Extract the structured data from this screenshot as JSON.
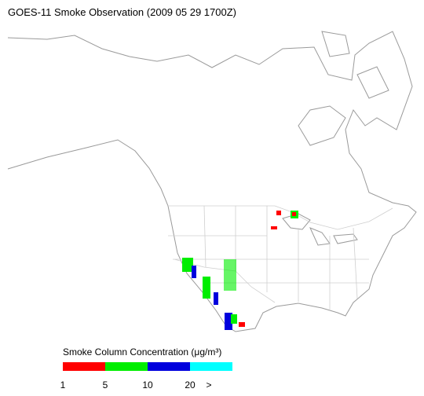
{
  "title": "GOES-11 Smoke Observation (2009 05 29  1700Z)",
  "legend": {
    "title": "Smoke Column Concentration (μg/m³)",
    "bins": [
      {
        "color": "#ff0000"
      },
      {
        "color": "#00ee00"
      },
      {
        "color": "#0000dd"
      },
      {
        "color": "#00ffff"
      }
    ],
    "labels": [
      "1",
      "5",
      "10",
      "20",
      ">"
    ]
  }
}
